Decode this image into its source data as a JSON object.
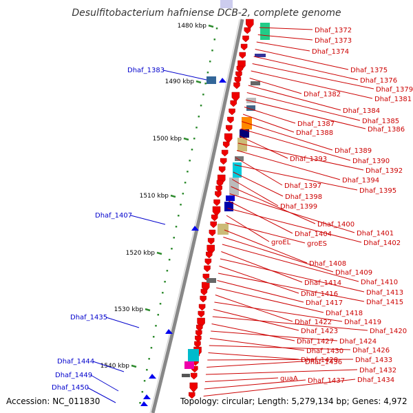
{
  "title": "Desulfitobacterium hafniense DCB-2, complete genome",
  "footer": {
    "accession": "Accession: NC_011830",
    "summary": "Topology: circular; Length: 5,279,134 bp; Genes: 4,972"
  },
  "colors": {
    "backbone": "#888888",
    "tick": "#2e8b2e",
    "forward_gene": "#0000ee",
    "reverse_gene": "#ee0000",
    "label_red": "#cc0000",
    "label_blue": "#0000cc"
  },
  "scale_labels": [
    "1480 kbp",
    "1490 kbp",
    "1500 kbp",
    "1510 kbp",
    "1520 kbp",
    "1530 kbp",
    "1540 kbp"
  ],
  "left_labels": [
    "Dhaf_1383",
    "Dhaf_1407",
    "Dhaf_1435",
    "Dhaf_1444",
    "Dhaf_1449",
    "Dhaf_1450"
  ],
  "right_labels": [
    "Dhaf_1372",
    "Dhaf_1373",
    "Dhaf_1374",
    "Dhaf_1375",
    "Dhaf_1376",
    "Dhaf_1379",
    "Dhaf_1381",
    "Dhaf_1382",
    "Dhaf_1384",
    "Dhaf_1385",
    "Dhaf_1386",
    "Dhaf_1387",
    "Dhaf_1388",
    "Dhaf_1389",
    "Dhaf_1390",
    "Dhaf_1393",
    "Dhaf_1392",
    "Dhaf_1394",
    "Dhaf_1397",
    "Dhaf_1395",
    "Dhaf_1398",
    "Dhaf_1399",
    "Dhaf_1400",
    "Dhaf_1401",
    "Dhaf_1404",
    "Dhaf_1402",
    "groEL",
    "groES",
    "Dhaf_1408",
    "Dhaf_1409",
    "Dhaf_1410",
    "Dhaf_1414",
    "Dhaf_1413",
    "Dhaf_1416",
    "Dhaf_1415",
    "Dhaf_1417",
    "Dhaf_1418",
    "Dhaf_1422",
    "Dhaf_1419",
    "Dhaf_1423",
    "Dhaf_1420",
    "Dhaf_1427",
    "Dhaf_1424",
    "Dhaf_1430",
    "Dhaf_1426",
    "Dhaf_1428",
    "Dhaf_1433",
    "Dhaf_1436",
    "Dhaf_1432",
    "guaA",
    "Dhaf_1437",
    "Dhaf_1434"
  ]
}
